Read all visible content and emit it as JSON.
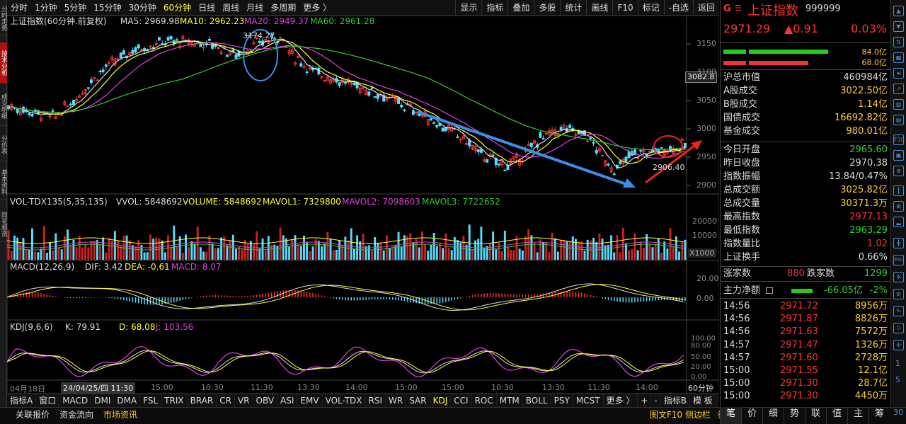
{
  "left_tabs": [
    "分时走势",
    "技术分析",
    "成交明细",
    "分价表",
    "基本资料",
    "同花顺资"
  ],
  "periods": [
    "分时",
    "1分钟",
    "5分钟",
    "15分钟",
    "30分钟",
    "60分钟",
    "日线",
    "周线",
    "月线",
    "多周期",
    "更多 〉"
  ],
  "active_period": "60分钟",
  "tools": [
    "显示",
    "指标",
    "叠加",
    "多股",
    "统计",
    "画线",
    "F10",
    "标记",
    "-自选",
    "返回"
  ],
  "main": {
    "title": "上证指数(60分钟.前复权)",
    "ma5": "MA5: 2969.98",
    "ma10": "MA10: 2962.23",
    "ma20": "MA20: 2949.37",
    "ma60": "MA60: 2961.28",
    "high_label": "3174.27",
    "low_label": "2906.40",
    "price_tag": "3082.8",
    "y_ticks": [
      "3150",
      "3100",
      "3050",
      "3000",
      "2950",
      "2900"
    ]
  },
  "vol": {
    "title": "VOL-TDX135(5,35,135)",
    "vvol": "VVOL: 5848692",
    "volume": "VOLUME: 5848692",
    "mavol1": "MAVOL1: 7329800",
    "mavol2": "MAVOL2: 7098603",
    "mavol3": "MAVOL3: 7722652",
    "y_ticks": [
      "20000",
      "10000"
    ],
    "unit": "X1000"
  },
  "macd": {
    "title": "MACD(12,26,9)",
    "dif": "DIF: 3.42",
    "dea": "DEA: -0.61",
    "macd": "MACD: 8.07",
    "y_ticks": [
      "20.00",
      "0.00"
    ]
  },
  "kdj": {
    "title": "KDJ(9,6,6)",
    "k": "K: 79.91",
    "d": "D: 68.08",
    "j": "J: 103.56",
    "y_ticks": [
      "100.00",
      "80.00",
      "50.00",
      "20.00",
      "0.00"
    ]
  },
  "time_axis": [
    "04月18日",
    "24/04/25/四 11:30",
    "15:00",
    "10:30",
    "11:30",
    "13:30",
    "14:00",
    "15:00",
    "15:00",
    "10:30",
    "11:30",
    "13:30",
    "14:00",
    "60分钟"
  ],
  "indicators": [
    "指标A",
    "窗口",
    "MACD",
    "DMI",
    "DMA",
    "FSL",
    "TRIX",
    "BRAR",
    "CR",
    "VR",
    "OBV",
    "ASI",
    "EMV",
    "VOL-TDX",
    "RSI",
    "WR",
    "SAR",
    "KDJ",
    "CCI",
    "ROC",
    "MTM",
    "BOLL",
    "PSY",
    "MCST",
    "更多 〉"
  ],
  "active_indicator": "KDJ",
  "indicator_b": "指标B",
  "template_btn": "模 板",
  "status_left": [
    "关联报价",
    "资金流向",
    "市场资讯"
  ],
  "status_right": "图文F10  侧边栏 《",
  "panel": {
    "brand": "G",
    "name": "上证指数",
    "code": "999999",
    "price": "2971.29",
    "change": "▲0.91",
    "pct": "0.03%",
    "bar1_pct": "84.0亿",
    "bar2_pct": "68.0亿",
    "rows1": [
      {
        "k": "沪总市值",
        "v": "460984亿",
        "c": "#ddd"
      },
      {
        "k": "A股成交",
        "v": "3022.50亿",
        "c": "#fc3"
      },
      {
        "k": "B股成交",
        "v": "1.14亿",
        "c": "#fc3"
      },
      {
        "k": "国债成交",
        "v": "16692.82亿",
        "c": "#fc3"
      },
      {
        "k": "基金成交",
        "v": "980.01亿",
        "c": "#fc3"
      }
    ],
    "rows2": [
      {
        "k": "今日开盘",
        "v": "2965.60",
        "c": "#3c3"
      },
      {
        "k": "昨日收盘",
        "v": "2970.38",
        "c": "#ddd"
      },
      {
        "k": "指数振幅",
        "v": "13.84/0.47%",
        "c": "#ddd"
      },
      {
        "k": "总成交额",
        "v": "3025.82亿",
        "c": "#fc3"
      },
      {
        "k": "总成交量",
        "v": "30371.3万",
        "c": "#fc3"
      },
      {
        "k": "最高指数",
        "v": "2977.13",
        "c": "#f33"
      },
      {
        "k": "最低指数",
        "v": "2963.29",
        "c": "#3c3"
      },
      {
        "k": "指数量比",
        "v": "1.02",
        "c": "#f33"
      },
      {
        "k": "上证换手",
        "v": "0.66%",
        "c": "#ddd"
      }
    ],
    "up_label": "涨家数",
    "up": "880",
    "down_label": "跌家数",
    "down": "1299",
    "flow_label": "主力净额",
    "flow": "-66.05亿",
    "flow_pct": "-2%",
    "ticks": [
      {
        "t": "14:56",
        "p": "2971.72",
        "v": "8956万"
      },
      {
        "t": "14:56",
        "p": "2971.87",
        "v": "8826万"
      },
      {
        "t": "14:56",
        "p": "2971.63",
        "v": "7572万"
      },
      {
        "t": "14:57",
        "p": "2971.47",
        "v": "1326万"
      },
      {
        "t": "14:57",
        "p": "2971.60",
        "v": "2728万"
      },
      {
        "t": "15:00",
        "p": "2971.55",
        "v": "12.1亿"
      },
      {
        "t": "15:00",
        "p": "2971.30",
        "v": "28.7亿"
      },
      {
        "t": "15:00",
        "p": "2971.30",
        "v": "4450万"
      }
    ],
    "tabs": [
      "笔",
      "价",
      "细",
      "势",
      "联",
      "值",
      "主",
      "筹"
    ],
    "active_tab": "笔"
  },
  "right_icons": [
    "up-icon",
    "down-icon",
    "share-icon",
    "grid-icon",
    "list-icon",
    "chart-icon",
    "f10-icon",
    "calendar-icon",
    "rsi-icon",
    "settings-icon"
  ],
  "right_icon_labels": {
    "f10": "F10",
    "rsi": "RSI",
    "page1": "1",
    "page2": "5",
    "page3": "30"
  }
}
